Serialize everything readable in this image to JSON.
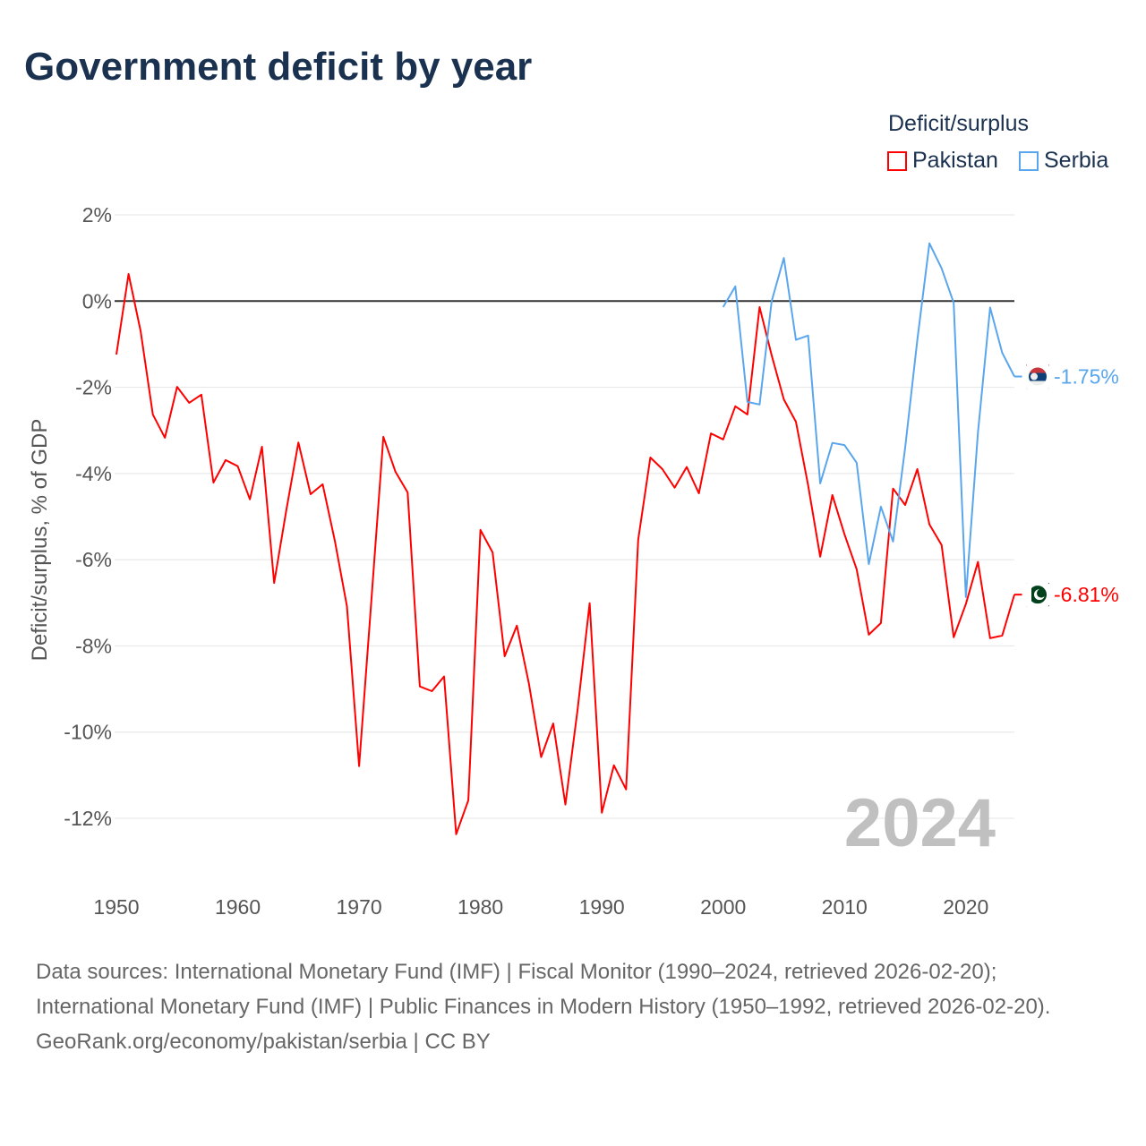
{
  "title": "Government deficit by year",
  "legend": {
    "title": "Deficit/surplus",
    "items": [
      {
        "name": "Pakistan",
        "color": "#ff0000"
      },
      {
        "name": "Serbia",
        "color": "#5aa6ec"
      }
    ]
  },
  "watermark_year": "2024",
  "sources": {
    "line1": "Data sources: International Monetary Fund (IMF) | Fiscal Monitor (1990–2024, retrieved 2026-02-20); International Monetary Fund (IMF) | Public Finances in Modern History (1950–1992, retrieved 2026-02-20).",
    "line2": "GeoRank.org/economy/pakistan/serbia | CC BY"
  },
  "chart_data": {
    "type": "line",
    "title": "Government deficit by year",
    "ylabel": "Deficit/surplus, % of GDP",
    "xlabel": "",
    "xlim": [
      1950,
      2024
    ],
    "ylim": [
      -12,
      2
    ],
    "x_ticks": [
      "1950",
      "1960",
      "1970",
      "1980",
      "1990",
      "2000",
      "2010",
      "2020"
    ],
    "y_ticks": [
      {
        "v": 2,
        "label": "2%"
      },
      {
        "v": 0,
        "label": "0%"
      },
      {
        "v": -2,
        "label": "-2%"
      },
      {
        "v": -4,
        "label": "-4%"
      },
      {
        "v": -6,
        "label": "-6%"
      },
      {
        "v": -8,
        "label": "-8%"
      },
      {
        "v": -10,
        "label": "-10%"
      },
      {
        "v": -12,
        "label": "-12%"
      }
    ],
    "grid": true,
    "legend_position": "top-right",
    "series": [
      {
        "name": "Pakistan",
        "color": "#ff0000",
        "start_year": 1950,
        "end_label": "-6.81%",
        "values": [
          -1.24,
          0.63,
          -0.7,
          -2.63,
          -3.17,
          -1.99,
          -2.36,
          -2.17,
          -4.21,
          -3.69,
          -3.83,
          -4.6,
          -3.38,
          -6.54,
          -4.85,
          -3.28,
          -4.48,
          -4.25,
          -5.56,
          -7.08,
          -10.79,
          -7.0,
          -3.15,
          -3.96,
          -4.44,
          -8.94,
          -9.05,
          -8.71,
          -12.37,
          -11.58,
          -5.31,
          -5.83,
          -8.24,
          -7.53,
          -8.88,
          -10.58,
          -9.8,
          -11.68,
          -9.48,
          -7.01,
          -11.87,
          -10.77,
          -11.33,
          -5.54,
          -3.63,
          -3.9,
          -4.33,
          -3.85,
          -4.46,
          -3.07,
          -3.21,
          -2.44,
          -2.63,
          -0.14,
          -1.26,
          -2.28,
          -2.8,
          -4.27,
          -5.93,
          -4.5,
          -5.41,
          -6.22,
          -7.74,
          -7.47,
          -4.35,
          -4.73,
          -3.9,
          -5.18,
          -5.66,
          -7.8,
          -7.03,
          -6.05,
          -7.82,
          -7.76,
          -6.81
        ]
      },
      {
        "name": "Serbia",
        "color": "#5aa6ec",
        "start_year": 2000,
        "end_label": "-1.75%",
        "values": [
          -0.14,
          0.34,
          -2.34,
          -2.4,
          0.0,
          1.0,
          -0.9,
          -0.8,
          -4.23,
          -3.29,
          -3.34,
          -3.75,
          -6.1,
          -4.77,
          -5.58,
          -3.4,
          -0.9,
          1.34,
          0.76,
          -0.04,
          -6.87,
          -3.05,
          -0.15,
          -1.2,
          -1.75
        ]
      }
    ]
  }
}
